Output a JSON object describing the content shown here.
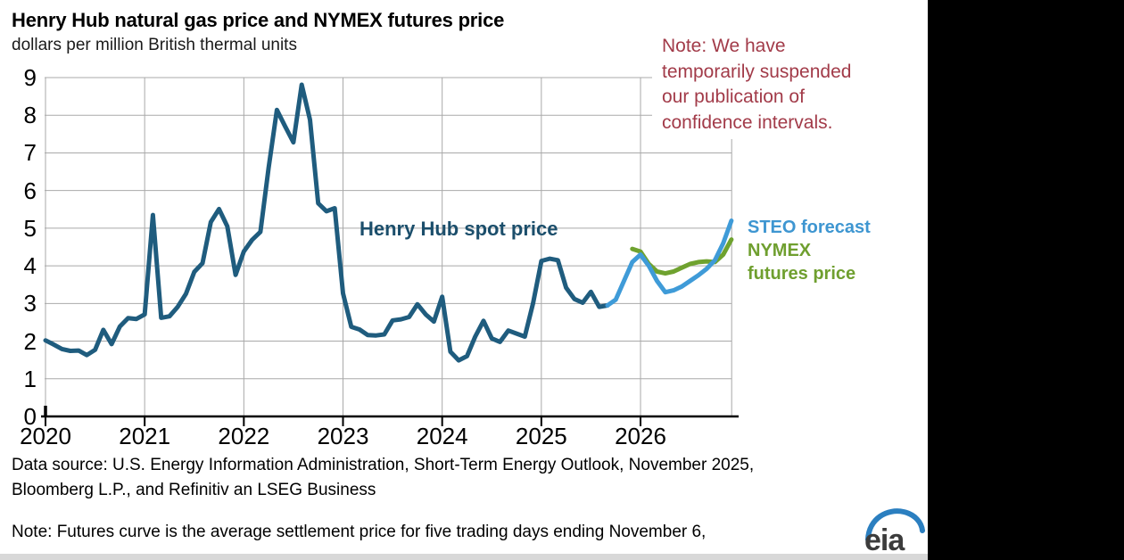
{
  "page": {
    "background": "#ffffff",
    "right_band_color": "#000000",
    "bottom_strip_color": "#d8d8d8"
  },
  "header": {
    "title": "Henry Hub natural gas price and NYMEX futures price",
    "subtitle": "dollars per million British thermal units"
  },
  "annotations": {
    "red_note_color": "#a23b49",
    "red_note_lines": {
      "l1": "Note: We have",
      "l2": "temporarily suspended",
      "l3": "our publication of",
      "l4": "confidence intervals."
    },
    "spot_label": "Henry Hub spot price",
    "spot_label_color": "#1b4e6b",
    "legend": {
      "steo_label": "STEO forecast",
      "steo_color": "#3e96d1",
      "nymex_label_line1": "NYMEX",
      "nymex_label_line2": "futures price",
      "nymex_color": "#6f9f2f"
    }
  },
  "footer": {
    "source_line1": "Data source: U.S. Energy Information Administration, Short-Term Energy Outlook, November 2025,",
    "source_line2": "Bloomberg L.P., and Refinitiv an LSEG Business",
    "note": "Note: Futures curve is the average settlement price for five trading days ending November 6,",
    "logo_text": "eia",
    "logo_text_color": "#3c3c3c",
    "logo_arc_color": "#2b7fc0"
  },
  "chart_data": {
    "type": "line",
    "title": "Henry Hub natural gas price and NYMEX futures price",
    "ylabel": "dollars per million British thermal units",
    "ylim": [
      0,
      9
    ],
    "yticks": [
      0,
      1,
      2,
      3,
      4,
      5,
      6,
      7,
      8,
      9
    ],
    "xticks": [
      2020,
      2021,
      2022,
      2023,
      2024,
      2025,
      2026
    ],
    "x_start": "2020-01",
    "x_end": "2026-12",
    "months_per_point": 1,
    "grid": true,
    "grid_color": "#a9a9a9",
    "legend_position": "right",
    "series": [
      {
        "name": "Henry Hub spot price",
        "color": "#1f5c7e",
        "start": "2020-01",
        "start_index": 0,
        "values": [
          2.02,
          1.91,
          1.79,
          1.74,
          1.75,
          1.63,
          1.77,
          2.3,
          1.92,
          2.39,
          2.61,
          2.59,
          2.71,
          5.35,
          2.62,
          2.66,
          2.91,
          3.26,
          3.84,
          4.07,
          5.16,
          5.51,
          5.05,
          3.76,
          4.38,
          4.69,
          4.9,
          6.6,
          8.14,
          7.7,
          7.28,
          8.81,
          7.88,
          5.66,
          5.45,
          5.53,
          3.27,
          2.38,
          2.31,
          2.16,
          2.15,
          2.18,
          2.55,
          2.58,
          2.64,
          2.98,
          2.71,
          2.52,
          3.18,
          1.72,
          1.49,
          1.6,
          2.12,
          2.54,
          2.07,
          1.98,
          2.28,
          2.2,
          2.12,
          3.01,
          4.13,
          4.19,
          4.15,
          3.42,
          3.12,
          3.02,
          3.31,
          2.91,
          2.95
        ]
      },
      {
        "name": "NYMEX futures price",
        "color": "#6fa22f",
        "start": "2025-12",
        "start_index": 71,
        "values": [
          4.45,
          4.38,
          4.05,
          3.85,
          3.8,
          3.85,
          3.95,
          4.05,
          4.1,
          4.12,
          4.1,
          4.3,
          4.7
        ]
      },
      {
        "name": "STEO forecast",
        "color": "#3f9bd8",
        "start": "2025-09",
        "start_index": 68,
        "values": [
          2.95,
          3.1,
          3.6,
          4.1,
          4.3,
          4.0,
          3.6,
          3.3,
          3.35,
          3.45,
          3.6,
          3.75,
          3.92,
          4.15,
          4.6,
          5.2
        ]
      }
    ]
  }
}
